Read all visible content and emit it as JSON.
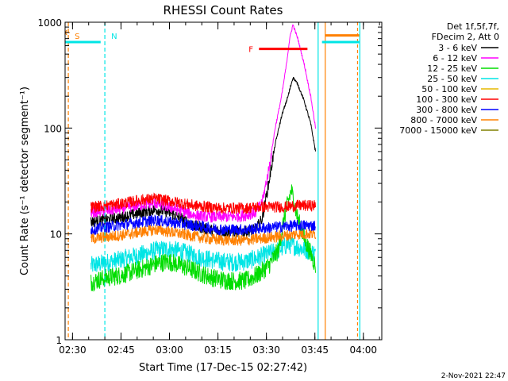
{
  "chart_data": {
    "type": "line",
    "title": "RHESSI Count Rates",
    "xlabel": "Start Time (17-Dec-15 02:27:42)",
    "ylabel": "Count Rate (s⁻¹ detector segment⁻¹)",
    "y_scale": "log",
    "ylim": [
      1,
      1000
    ],
    "x_unit": "minutes after 02:27:42",
    "xlim": [
      0,
      98
    ],
    "x_ticks": [
      {
        "value": 2.3,
        "label": "02:30"
      },
      {
        "value": 17.3,
        "label": "02:45"
      },
      {
        "value": 32.3,
        "label": "03:00"
      },
      {
        "value": 47.3,
        "label": "03:15"
      },
      {
        "value": 62.3,
        "label": "03:30"
      },
      {
        "value": 77.3,
        "label": "03:45"
      },
      {
        "value": 92.3,
        "label": "04:00"
      }
    ],
    "y_ticks": [
      {
        "value": 1,
        "label": "1"
      },
      {
        "value": 10,
        "label": "10"
      },
      {
        "value": 100,
        "label": "100"
      },
      {
        "value": 1000,
        "label": "1000"
      }
    ],
    "grid": false,
    "legend": {
      "placement": "right",
      "header": [
        "Det 1f,5f,7f,",
        "FDecim 2, Att 0"
      ],
      "entries": [
        {
          "label": "3 - 6 keV",
          "color": "#000000"
        },
        {
          "label": "6 - 12 keV",
          "color": "#ff00ff"
        },
        {
          "label": "12 - 25 keV",
          "color": "#00dd00"
        },
        {
          "label": "25 - 50 keV",
          "color": "#00e5e5"
        },
        {
          "label": "50 - 100 keV",
          "color": "#e6b800"
        },
        {
          "label": "100 - 300 keV",
          "color": "#ff0000"
        },
        {
          "label": "300 - 800 keV",
          "color": "#0000ff"
        },
        {
          "label": "800 - 7000 keV",
          "color": "#ff8000"
        },
        {
          "label": "7000 - 15000 keV",
          "color": "#808000"
        }
      ]
    },
    "series": [
      {
        "name": "3 - 6 keV",
        "color": "#000000",
        "points": [
          [
            8,
            13
          ],
          [
            12,
            13.5
          ],
          [
            16,
            14
          ],
          [
            20,
            15
          ],
          [
            24,
            16
          ],
          [
            28,
            17
          ],
          [
            32,
            16
          ],
          [
            36,
            14
          ],
          [
            40,
            12
          ],
          [
            44,
            11
          ],
          [
            48,
            10.5
          ],
          [
            52,
            10.5
          ],
          [
            56,
            10.5
          ],
          [
            59,
            11
          ],
          [
            61,
            14
          ],
          [
            63,
            30
          ],
          [
            65,
            70
          ],
          [
            67,
            130
          ],
          [
            69,
            200
          ],
          [
            70.5,
            300
          ],
          [
            72,
            260
          ],
          [
            74,
            180
          ],
          [
            76,
            110
          ],
          [
            77.5,
            60
          ]
        ]
      },
      {
        "name": "6 - 12 keV",
        "color": "#ff00ff",
        "points": [
          [
            8,
            16
          ],
          [
            12,
            16.5
          ],
          [
            16,
            17
          ],
          [
            20,
            18
          ],
          [
            24,
            19
          ],
          [
            28,
            19.5
          ],
          [
            32,
            18
          ],
          [
            36,
            16.5
          ],
          [
            40,
            15
          ],
          [
            44,
            14.5
          ],
          [
            48,
            14.5
          ],
          [
            52,
            14.5
          ],
          [
            56,
            15
          ],
          [
            59,
            16
          ],
          [
            61,
            20
          ],
          [
            63,
            40
          ],
          [
            65,
            100
          ],
          [
            67,
            200
          ],
          [
            68.5,
            400
          ],
          [
            69.5,
            700
          ],
          [
            70.5,
            950
          ],
          [
            72,
            700
          ],
          [
            74,
            400
          ],
          [
            76,
            200
          ],
          [
            77.5,
            100
          ]
        ]
      },
      {
        "name": "12 - 25 keV",
        "color": "#00dd00",
        "points": [
          [
            8,
            3.5
          ],
          [
            12,
            3.8
          ],
          [
            16,
            4
          ],
          [
            20,
            4.3
          ],
          [
            24,
            4.7
          ],
          [
            28,
            5.2
          ],
          [
            32,
            5.5
          ],
          [
            36,
            5
          ],
          [
            40,
            4.5
          ],
          [
            44,
            4
          ],
          [
            48,
            3.7
          ],
          [
            52,
            3.6
          ],
          [
            56,
            3.6
          ],
          [
            60,
            4.2
          ],
          [
            63,
            5
          ],
          [
            66,
            7
          ],
          [
            68,
            15
          ],
          [
            70,
            26
          ],
          [
            72,
            14
          ],
          [
            74,
            9
          ],
          [
            76,
            6.5
          ],
          [
            77.5,
            5
          ]
        ]
      },
      {
        "name": "25 - 50 keV",
        "color": "#00e5e5",
        "points": [
          [
            8,
            5
          ],
          [
            12,
            5.3
          ],
          [
            16,
            5.6
          ],
          [
            20,
            6
          ],
          [
            24,
            6.4
          ],
          [
            28,
            7
          ],
          [
            32,
            7.2
          ],
          [
            36,
            6.8
          ],
          [
            40,
            6.2
          ],
          [
            44,
            5.8
          ],
          [
            48,
            5.5
          ],
          [
            52,
            5.4
          ],
          [
            56,
            5.5
          ],
          [
            60,
            6
          ],
          [
            63,
            6.5
          ],
          [
            66,
            7
          ],
          [
            69,
            8
          ],
          [
            72,
            7.5
          ],
          [
            75,
            7
          ],
          [
            77.5,
            6.5
          ]
        ]
      },
      {
        "name": "100 - 300 keV",
        "color": "#ff0000",
        "points": [
          [
            8,
            18
          ],
          [
            12,
            18.5
          ],
          [
            16,
            19
          ],
          [
            20,
            20
          ],
          [
            24,
            21
          ],
          [
            28,
            21.5
          ],
          [
            32,
            20.5
          ],
          [
            36,
            19.5
          ],
          [
            40,
            18.5
          ],
          [
            44,
            18
          ],
          [
            48,
            17.5
          ],
          [
            52,
            17.5
          ],
          [
            56,
            17.5
          ],
          [
            60,
            18
          ],
          [
            64,
            18
          ],
          [
            68,
            18
          ],
          [
            72,
            18.5
          ],
          [
            77.5,
            18.5
          ]
        ]
      },
      {
        "name": "300 - 800 keV",
        "color": "#0000ff",
        "points": [
          [
            8,
            11
          ],
          [
            12,
            11.5
          ],
          [
            16,
            12
          ],
          [
            20,
            12.5
          ],
          [
            24,
            13
          ],
          [
            28,
            13.5
          ],
          [
            32,
            13
          ],
          [
            36,
            12.5
          ],
          [
            40,
            12
          ],
          [
            44,
            11.5
          ],
          [
            48,
            11
          ],
          [
            52,
            11
          ],
          [
            56,
            11
          ],
          [
            60,
            11.3
          ],
          [
            64,
            11.5
          ],
          [
            68,
            11.8
          ],
          [
            72,
            12
          ],
          [
            77.5,
            12
          ]
        ]
      },
      {
        "name": "800 - 7000 keV",
        "color": "#ff8000",
        "points": [
          [
            8,
            9
          ],
          [
            12,
            9.3
          ],
          [
            16,
            9.6
          ],
          [
            20,
            10
          ],
          [
            24,
            10.5
          ],
          [
            28,
            11
          ],
          [
            32,
            10.5
          ],
          [
            36,
            10
          ],
          [
            40,
            9.5
          ],
          [
            44,
            9
          ],
          [
            48,
            8.8
          ],
          [
            52,
            8.7
          ],
          [
            56,
            8.7
          ],
          [
            60,
            9
          ],
          [
            64,
            9.3
          ],
          [
            68,
            9.6
          ],
          [
            72,
            10
          ],
          [
            77.5,
            10
          ]
        ]
      }
    ],
    "attenuator_segments": [
      {
        "label": "",
        "x": [
          -1,
          11
        ],
        "y": 650,
        "color": "#00e5e5"
      },
      {
        "label": "",
        "x": [
          79.5,
          91
        ],
        "y": 650,
        "color": "#00e5e5"
      },
      {
        "label": "",
        "x": [
          80.5,
          91
        ],
        "y": 750,
        "color": "#ff8000"
      },
      {
        "label": "F",
        "x": [
          60,
          75
        ],
        "y": 560,
        "color": "#ff0000"
      }
    ],
    "markers": [
      {
        "label": "S",
        "x": 1.0,
        "color": "#ff8000"
      },
      {
        "label": "N",
        "x": 12.3,
        "color": "#00e5e5"
      }
    ],
    "extra_vertical_lines": [
      {
        "x": 78.3,
        "color": "#00e5e5",
        "style": "solid"
      },
      {
        "x": 80.5,
        "color": "#ff8000",
        "style": "solid"
      },
      {
        "x": 90.5,
        "color": "#ff8000",
        "style": "dashed"
      },
      {
        "x": 91.2,
        "color": "#00e5e5",
        "style": "solid"
      }
    ],
    "timestamp": "2-Nov-2021 22:47"
  }
}
